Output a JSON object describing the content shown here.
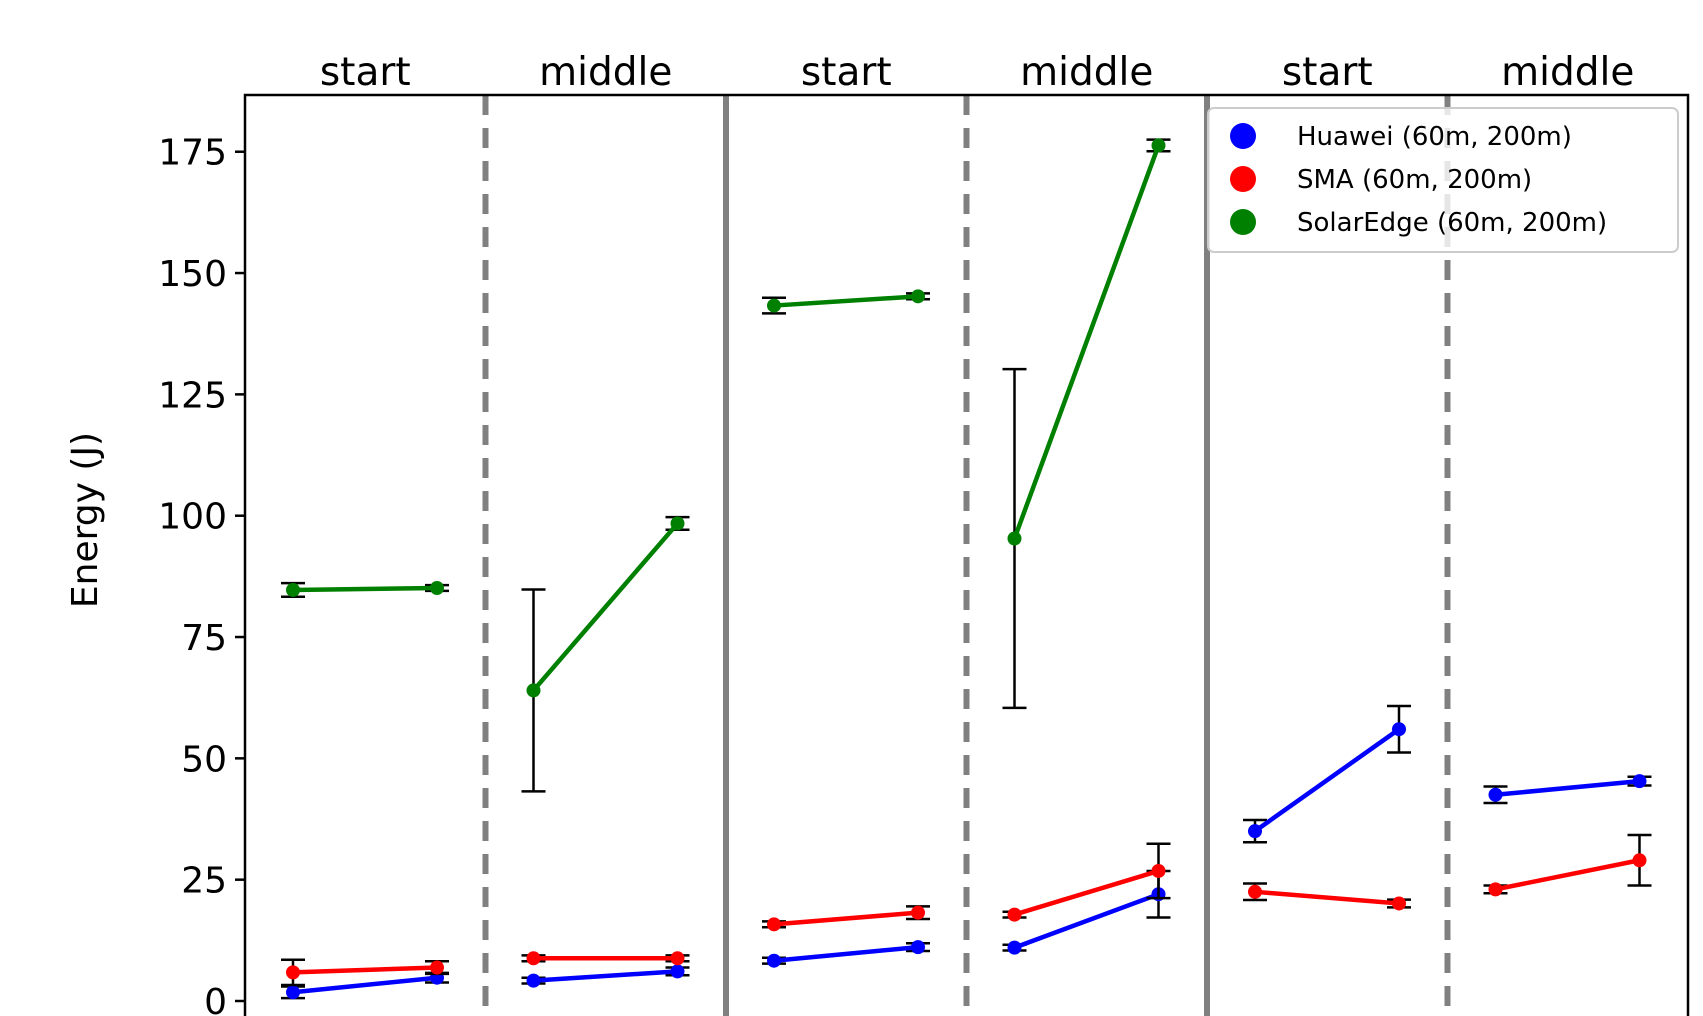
{
  "chart_data": {
    "type": "line",
    "ylabel": "Energy (J)",
    "ylim": [
      -6,
      187
    ],
    "yticks": [
      0,
      25,
      50,
      75,
      100,
      125,
      150,
      175
    ],
    "panel_labels": [
      "start",
      "middle",
      "start",
      "middle",
      "start",
      "middle"
    ],
    "grid": false,
    "legend": {
      "placement": "top-right",
      "entries": [
        {
          "label": "Huawei (60m, 200m)",
          "color": "#0000ff"
        },
        {
          "label": "SMA (60m, 200m)",
          "color": "#ff0000"
        },
        {
          "label": "SolarEdge (60m, 200m)",
          "color": "#008000"
        }
      ]
    },
    "series": [
      {
        "color": "#0000ff",
        "panels": [
          {
            "values": [
              1.8,
              4.8
            ],
            "errors": [
              1.2,
              1.0
            ]
          },
          {
            "values": [
              4.2,
              6.1
            ],
            "errors": [
              0.6,
              0.8
            ]
          },
          {
            "values": [
              8.3,
              11.1
            ],
            "errors": [
              0.6,
              0.8
            ]
          },
          {
            "values": [
              11.0,
              22.0
            ],
            "errors": [
              0.6,
              4.8
            ]
          },
          {
            "values": [
              35.0,
              56.0
            ],
            "errors": [
              2.3,
              4.8
            ]
          },
          {
            "values": [
              42.5,
              45.3
            ],
            "errors": [
              1.7,
              0.9
            ]
          }
        ]
      },
      {
        "color": "#ff0000",
        "panels": [
          {
            "values": [
              5.9,
              6.9
            ],
            "errors": [
              2.6,
              1.3
            ]
          },
          {
            "values": [
              8.8,
              8.8
            ],
            "errors": [
              0.6,
              0.6
            ]
          },
          {
            "values": [
              15.8,
              18.2
            ],
            "errors": [
              0.6,
              1.3
            ]
          },
          {
            "values": [
              17.8,
              26.8
            ],
            "errors": [
              0.6,
              5.6
            ]
          },
          {
            "values": [
              22.5,
              20.1
            ],
            "errors": [
              1.7,
              0.8
            ]
          },
          {
            "values": [
              23.0,
              29.0
            ],
            "errors": [
              0.8,
              5.2
            ]
          }
        ]
      },
      {
        "color": "#008000",
        "panels": [
          {
            "values": [
              84.7,
              85.1
            ],
            "errors": [
              1.4,
              0.6
            ]
          },
          {
            "values": [
              64.0,
              98.4
            ],
            "errors": [
              20.8,
              1.3
            ]
          },
          {
            "values": [
              143.3,
              145.2
            ],
            "errors": [
              1.6,
              0.6
            ]
          },
          {
            "values": [
              95.3,
              176.3
            ],
            "errors": [
              34.9,
              1.2
            ]
          }
        ]
      }
    ]
  }
}
